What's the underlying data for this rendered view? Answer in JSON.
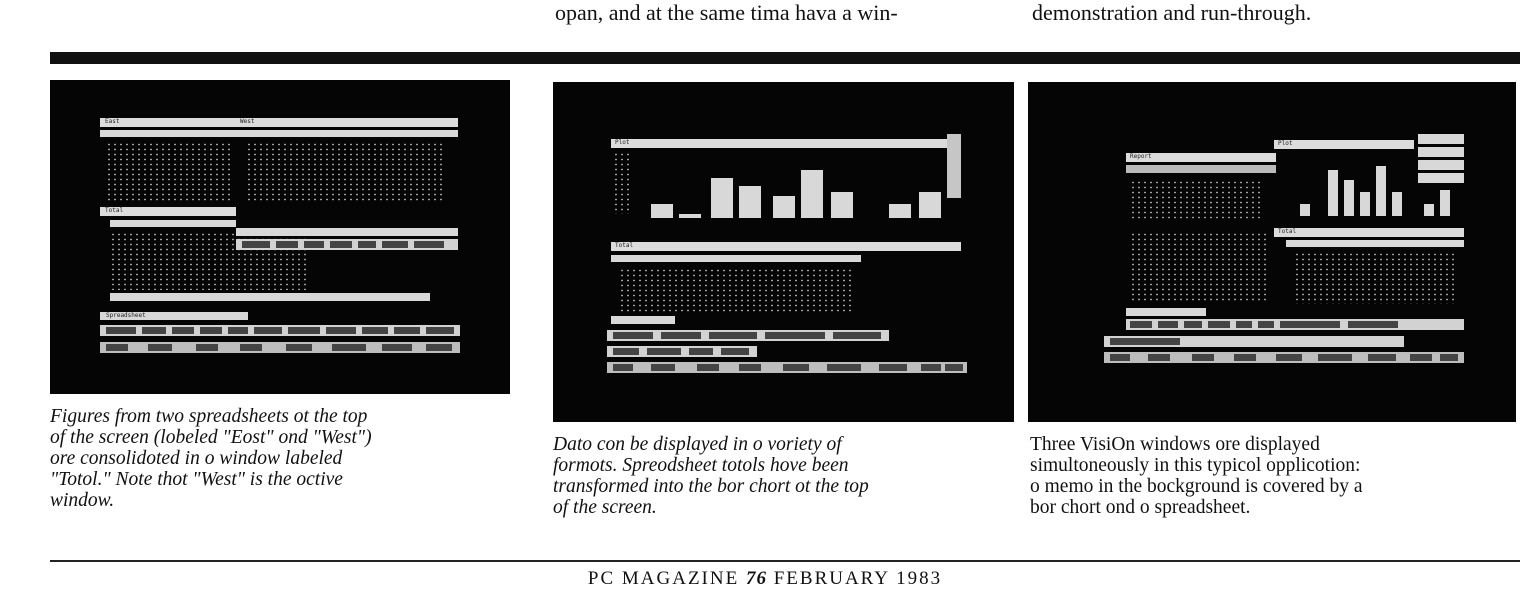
{
  "top_text": {
    "mid_col": "opan, and at the same tima hava a win-",
    "right_col": "demonstration and run-through."
  },
  "figures": [
    {
      "caption_lines": [
        "Figures from two spreadsheets ot the top",
        "of the screen (lobeled \"Eost\" ond \"West\")",
        "ore consolidoted in o window labeled",
        "\"Totol.\" Note thot \"West\" is the octive",
        "window."
      ],
      "window_labels": [
        "East",
        "West",
        "Total"
      ],
      "status_label": "Spreadsheet"
    },
    {
      "caption_lines": [
        "Dato con be displayed in o voriety of",
        "formots. Spreodsheet totols hove been",
        "transformed into the bor chort ot the top",
        "of the screen."
      ],
      "window_labels": [
        "Plot",
        "Total"
      ]
    },
    {
      "caption_lines": [
        "Three VisiOn windows ore displayed",
        "simultoneously in this typicol opplicotion:",
        "o memo in the bockground is covered by a",
        "bor chort ond o spreadsheet."
      ],
      "window_labels": [
        "Report",
        "Plot",
        "Total"
      ]
    }
  ],
  "footer": {
    "left": "PC MAGAZINE",
    "page": "76",
    "right": "FEBRUARY 1983"
  }
}
